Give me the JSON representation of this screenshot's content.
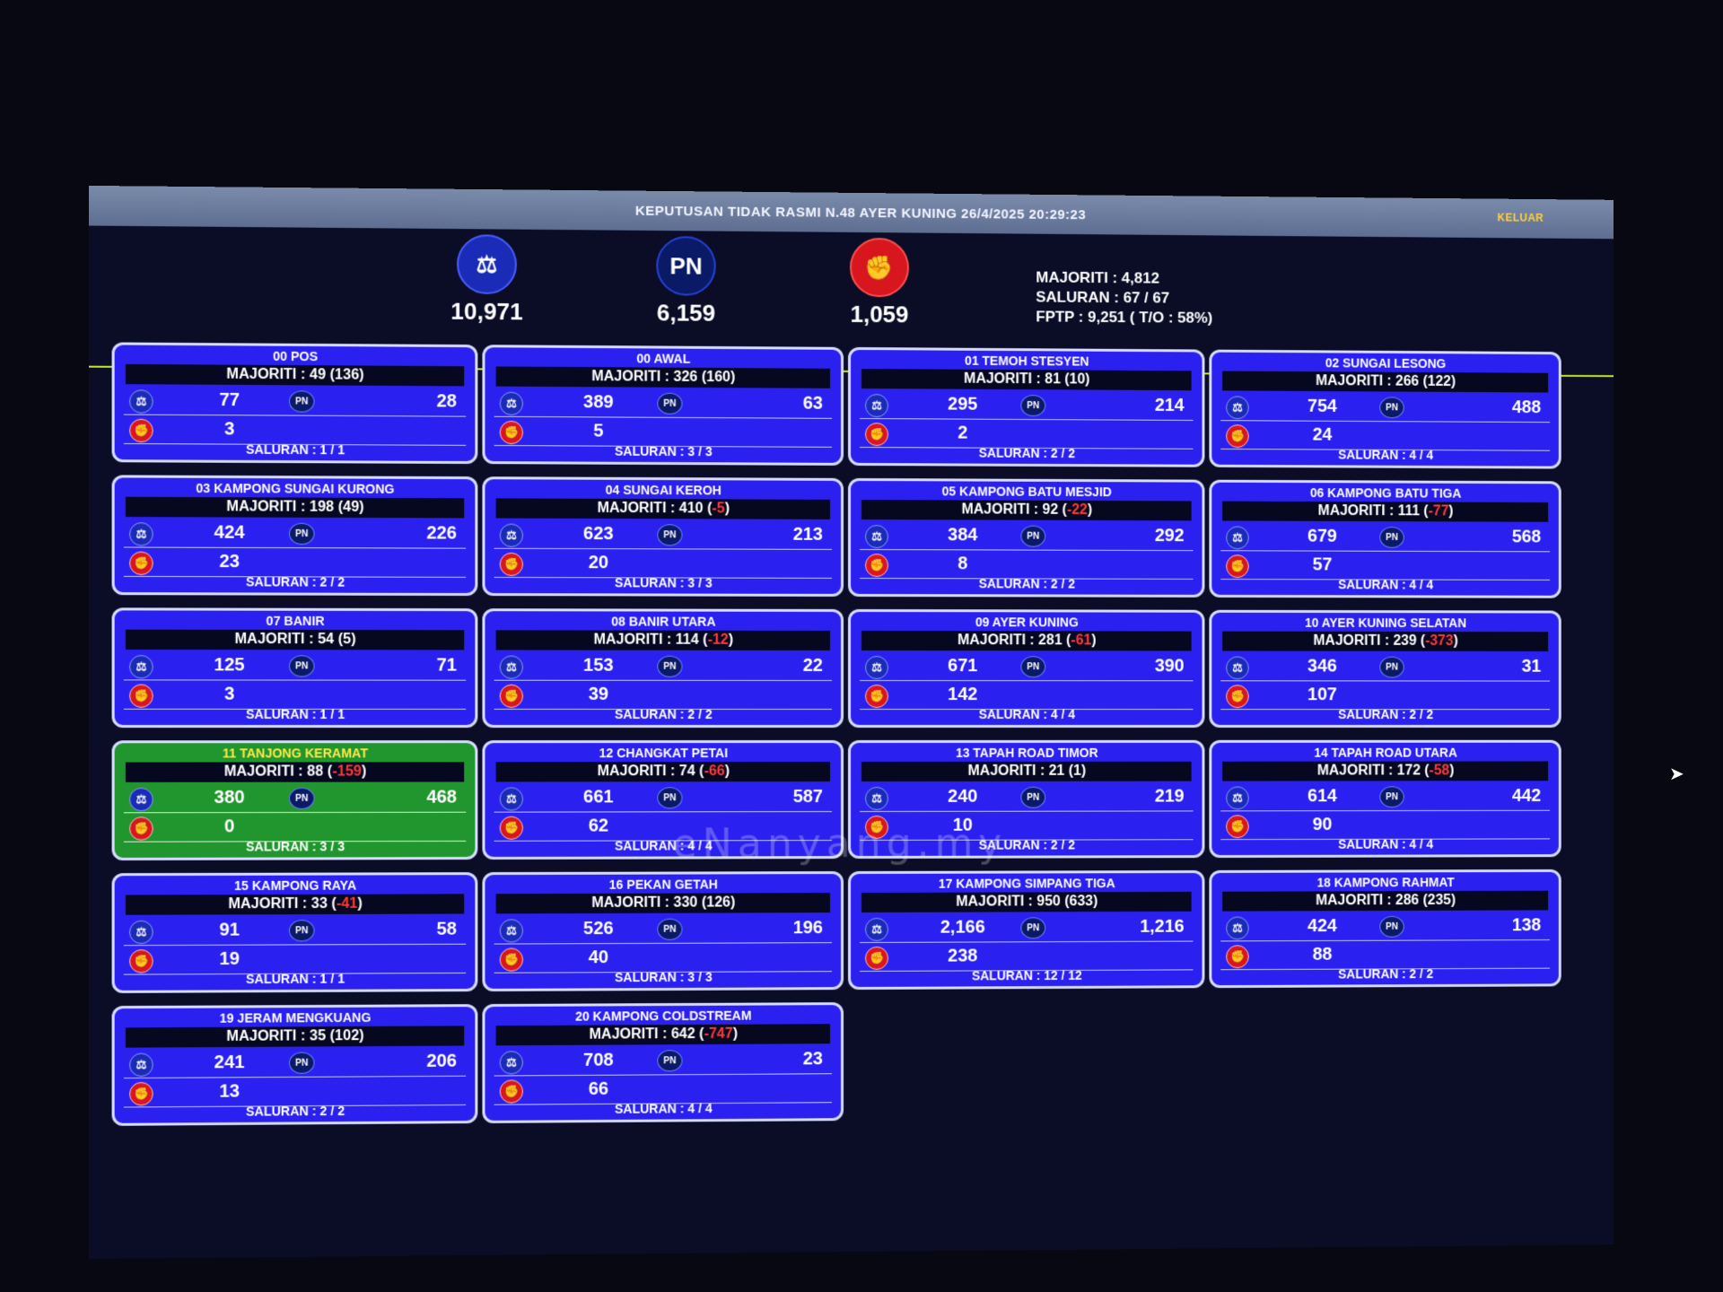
{
  "header": {
    "title": "KEPUTUSAN TIDAK RASMI N.48 AYER KUNING 26/4/2025 20:29:23",
    "exit_label": "KELUAR"
  },
  "summary": {
    "parties": [
      {
        "icon": "scales-icon",
        "total": "10,971"
      },
      {
        "label": "PN",
        "icon": "pn-icon",
        "total": "6,159"
      },
      {
        "icon": "fist-icon",
        "total": "1,059"
      }
    ],
    "majoriti": "MAJORITI : 4,812",
    "saluran": "SALURAN : 67 / 67",
    "fptp": "FPTP : 9,251 ( T/O : 58%)"
  },
  "pn_label": "PN",
  "watermark": "eNanyang.my",
  "colors": {
    "card_blue": "#2a20f0",
    "card_green": "#22962e",
    "negative": "#ff3a3a",
    "yellow": "#c8e62a"
  },
  "stations": [
    {
      "name": "00 POS",
      "maj": "MAJORITI : 49 (",
      "maj_diff": "136",
      "neg": false,
      "ph": "77",
      "pn": "28",
      "psm": "3",
      "sal": "SALURAN : 1 / 1"
    },
    {
      "name": "00 AWAL",
      "maj": "MAJORITI : 326 (",
      "maj_diff": "160",
      "neg": false,
      "ph": "389",
      "pn": "63",
      "psm": "5",
      "sal": "SALURAN : 3 / 3"
    },
    {
      "name": "01 TEMOH STESYEN",
      "maj": "MAJORITI : 81 (",
      "maj_diff": "10",
      "neg": false,
      "ph": "295",
      "pn": "214",
      "psm": "2",
      "sal": "SALURAN : 2 / 2"
    },
    {
      "name": "02 SUNGAI LESONG",
      "maj": "MAJORITI : 266 (",
      "maj_diff": "122",
      "neg": false,
      "ph": "754",
      "pn": "488",
      "psm": "24",
      "sal": "SALURAN : 4 / 4"
    },
    {
      "name": "03 KAMPONG SUNGAI KURONG",
      "maj": "MAJORITI : 198 (",
      "maj_diff": "49",
      "neg": false,
      "ph": "424",
      "pn": "226",
      "psm": "23",
      "sal": "SALURAN : 2 / 2"
    },
    {
      "name": "04 SUNGAI KEROH",
      "maj": "MAJORITI : 410 (",
      "maj_diff": "-5",
      "neg": true,
      "ph": "623",
      "pn": "213",
      "psm": "20",
      "sal": "SALURAN : 3 / 3"
    },
    {
      "name": "05 KAMPONG BATU MESJID",
      "maj": "MAJORITI : 92 (",
      "maj_diff": "-22",
      "neg": true,
      "ph": "384",
      "pn": "292",
      "psm": "8",
      "sal": "SALURAN : 2 / 2"
    },
    {
      "name": "06 KAMPONG BATU TIGA",
      "maj": "MAJORITI : 111 (",
      "maj_diff": "-77",
      "neg": true,
      "ph": "679",
      "pn": "568",
      "psm": "57",
      "sal": "SALURAN : 4 / 4"
    },
    {
      "name": "07 BANIR",
      "maj": "MAJORITI : 54 (",
      "maj_diff": "5",
      "neg": false,
      "ph": "125",
      "pn": "71",
      "psm": "3",
      "sal": "SALURAN : 1 / 1"
    },
    {
      "name": "08 BANIR UTARA",
      "maj": "MAJORITI : 114 (",
      "maj_diff": "-12",
      "neg": true,
      "ph": "153",
      "pn": "22",
      "psm": "39",
      "sal": "SALURAN : 2 / 2"
    },
    {
      "name": "09 AYER KUNING",
      "maj": "MAJORITI : 281 (",
      "maj_diff": "-61",
      "neg": true,
      "ph": "671",
      "pn": "390",
      "psm": "142",
      "sal": "SALURAN : 4 / 4"
    },
    {
      "name": "10 AYER KUNING SELATAN",
      "maj": "MAJORITI : 239 (",
      "maj_diff": "-373",
      "neg": true,
      "ph": "346",
      "pn": "31",
      "psm": "107",
      "sal": "SALURAN : 2 / 2"
    },
    {
      "name": "11 TANJONG KERAMAT",
      "maj": "MAJORITI : 88 (",
      "maj_diff": "-159",
      "neg": true,
      "ph": "380",
      "pn": "468",
      "psm": "0",
      "sal": "SALURAN : 3 / 3",
      "green": true
    },
    {
      "name": "12 CHANGKAT PETAI",
      "maj": "MAJORITI : 74 (",
      "maj_diff": "-66",
      "neg": true,
      "ph": "661",
      "pn": "587",
      "psm": "62",
      "sal": "SALURAN : 4 / 4"
    },
    {
      "name": "13 TAPAH ROAD TIMOR",
      "maj": "MAJORITI : 21 (",
      "maj_diff": "1",
      "neg": false,
      "ph": "240",
      "pn": "219",
      "psm": "10",
      "sal": "SALURAN : 2 / 2"
    },
    {
      "name": "14 TAPAH ROAD UTARA",
      "maj": "MAJORITI : 172 (",
      "maj_diff": "-58",
      "neg": true,
      "ph": "614",
      "pn": "442",
      "psm": "90",
      "sal": "SALURAN : 4 / 4"
    },
    {
      "name": "15 KAMPONG RAYA",
      "maj": "MAJORITI : 33 (",
      "maj_diff": "-41",
      "neg": true,
      "ph": "91",
      "pn": "58",
      "psm": "19",
      "sal": "SALURAN : 1 / 1"
    },
    {
      "name": "16 PEKAN GETAH",
      "maj": "MAJORITI : 330 (",
      "maj_diff": "126",
      "neg": false,
      "ph": "526",
      "pn": "196",
      "psm": "40",
      "sal": "SALURAN : 3 / 3"
    },
    {
      "name": "17 KAMPONG SIMPANG TIGA",
      "maj": "MAJORITI : 950 (",
      "maj_diff": "633",
      "neg": false,
      "ph": "2,166",
      "pn": "1,216",
      "psm": "238",
      "sal": "SALURAN : 12 / 12"
    },
    {
      "name": "18 KAMPONG RAHMAT",
      "maj": "MAJORITI : 286 (",
      "maj_diff": "235",
      "neg": false,
      "ph": "424",
      "pn": "138",
      "psm": "88",
      "sal": "SALURAN : 2 / 2"
    },
    {
      "name": "19 JERAM MENGKUANG",
      "maj": "MAJORITI : 35 (",
      "maj_diff": "102",
      "neg": false,
      "ph": "241",
      "pn": "206",
      "psm": "13",
      "sal": "SALURAN : 2 / 2"
    },
    {
      "name": "20 KAMPONG COLDSTREAM",
      "maj": "MAJORITI : 642 (",
      "maj_diff": "-747",
      "neg": true,
      "ph": "708",
      "pn": "23",
      "psm": "66",
      "sal": "SALURAN : 4 / 4"
    }
  ]
}
